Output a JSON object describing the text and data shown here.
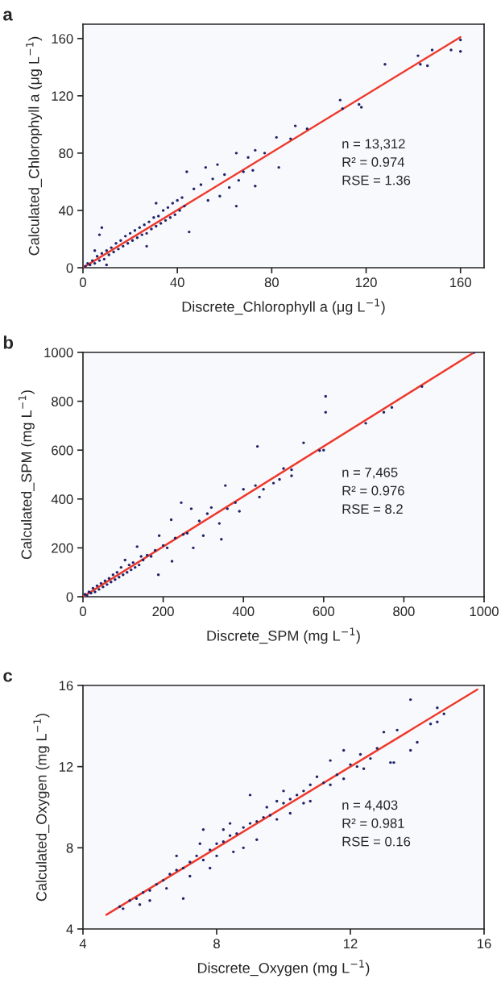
{
  "chart_data": [
    {
      "type": "scatter",
      "title": "a",
      "xlabel": "Discrete_Chlorophyll a (μg L$^{−1}$)",
      "ylabel": "Calculated_Chlorophyll a (μg L$^{−1}$)",
      "xlim": [
        0,
        170
      ],
      "ylim": [
        0,
        170
      ],
      "xticks": [
        0,
        40,
        80,
        120,
        160
      ],
      "yticks": [
        0,
        40,
        80,
        120,
        160
      ],
      "grid": false,
      "annotations": [
        "n = 13,312",
        "R² = 0.974",
        "RSE = 1.36"
      ],
      "series": [
        {
          "marker": "circle",
          "color": "#1f2468",
          "x": [
            1,
            2,
            3,
            4,
            5,
            6,
            7,
            8,
            9,
            10,
            11,
            12,
            13,
            14,
            15,
            16,
            17,
            18,
            19,
            20,
            21,
            22,
            23,
            24,
            25,
            26,
            27,
            28,
            29,
            30,
            31,
            32,
            33,
            34,
            35,
            36,
            37,
            38,
            39,
            40,
            41,
            42,
            43,
            44,
            45,
            5,
            8,
            10,
            7,
            27,
            31,
            47,
            50,
            52,
            53,
            55,
            57,
            58,
            60,
            62,
            65,
            65,
            66,
            68,
            70,
            72,
            73,
            73,
            77,
            82,
            83,
            88,
            90,
            95,
            109,
            110,
            117,
            118,
            128,
            142,
            143,
            146,
            148,
            156,
            160,
            160
          ],
          "values": [
            1,
            3,
            2,
            5,
            3,
            8,
            5,
            10,
            6,
            12,
            9,
            14,
            11,
            17,
            13,
            19,
            15,
            22,
            17,
            24,
            19,
            26,
            21,
            28,
            23,
            30,
            24,
            32,
            27,
            35,
            29,
            36,
            31,
            40,
            33,
            42,
            35,
            45,
            37,
            47,
            40,
            49,
            43,
            67,
            25,
            12,
            28,
            2,
            23,
            15,
            45,
            55,
            58,
            70,
            47,
            62,
            72,
            50,
            65,
            56,
            80,
            43,
            61,
            67,
            77,
            68,
            82,
            57,
            80,
            91,
            70,
            90,
            99,
            97,
            117,
            111,
            114,
            112,
            142,
            148,
            142,
            141,
            152,
            152,
            159,
            151
          ]
        },
        {
          "type": "line",
          "marker": "none",
          "line_style": "solid",
          "color": "#ee3a2c",
          "x": [
            0,
            160
          ],
          "values": [
            0,
            161
          ]
        }
      ]
    },
    {
      "type": "scatter",
      "title": "b",
      "xlabel": "Discrete_SPM (mg L$^{−1}$)",
      "ylabel": "Calculated_SPM (mg L$^{−1}$)",
      "xlim": [
        0,
        1000
      ],
      "ylim": [
        0,
        1000
      ],
      "xticks": [
        0,
        200,
        400,
        600,
        800,
        1000
      ],
      "yticks": [
        0,
        200,
        400,
        600,
        800,
        1000
      ],
      "grid": false,
      "annotations": [
        "n = 7,465",
        "R² = 0.976",
        "RSE = 8.2"
      ],
      "series": [
        {
          "marker": "circle",
          "color": "#1f2468",
          "x": [
            5,
            10,
            15,
            20,
            25,
            30,
            35,
            40,
            45,
            50,
            55,
            60,
            65,
            70,
            75,
            80,
            85,
            90,
            95,
            100,
            105,
            110,
            115,
            120,
            125,
            130,
            135,
            140,
            145,
            150,
            160,
            170,
            180,
            188,
            190,
            200,
            210,
            220,
            222,
            230,
            245,
            250,
            260,
            270,
            275,
            290,
            300,
            310,
            320,
            340,
            345,
            355,
            360,
            380,
            390,
            400,
            430,
            435,
            440,
            450,
            475,
            490,
            500,
            520,
            520,
            550,
            590,
            600,
            605,
            605,
            705,
            750,
            770,
            845,
            975
          ],
          "values": [
            10,
            5,
            20,
            15,
            35,
            20,
            45,
            30,
            55,
            40,
            65,
            50,
            75,
            60,
            90,
            70,
            100,
            80,
            120,
            90,
            150,
            100,
            130,
            110,
            140,
            120,
            205,
            130,
            165,
            150,
            170,
            165,
            190,
            90,
            250,
            210,
            200,
            315,
            145,
            240,
            385,
            255,
            260,
            360,
            200,
            310,
            250,
            340,
            365,
            300,
            235,
            455,
            360,
            385,
            350,
            440,
            455,
            615,
            408,
            440,
            465,
            480,
            525,
            520,
            495,
            630,
            598,
            600,
            820,
            755,
            710,
            755,
            775,
            860,
            1000
          ]
        },
        {
          "type": "line",
          "marker": "none",
          "line_style": "solid",
          "color": "#ee3a2c",
          "x": [
            0,
            975
          ],
          "values": [
            0,
            1000
          ]
        }
      ]
    },
    {
      "type": "scatter",
      "title": "c",
      "xlabel": "Discrete_Oxygen (mg L$^{−1}$)",
      "ylabel": "Calculated_Oxygen (mg L$^{−1}$)",
      "xlim": [
        4,
        16
      ],
      "ylim": [
        4,
        16
      ],
      "xticks": [
        4,
        8,
        12,
        16
      ],
      "yticks": [
        4,
        8,
        12,
        16
      ],
      "grid": false,
      "annotations": [
        "n = 4,403",
        "R² = 0.981",
        "RSE = 0.16"
      ],
      "series": [
        {
          "marker": "circle",
          "color": "#1f2468",
          "x": [
            5.1,
            5.2,
            5.4,
            5.6,
            5.7,
            5.8,
            6.0,
            6.0,
            6.2,
            6.4,
            6.5,
            6.6,
            6.8,
            6.8,
            7.0,
            7.0,
            7.2,
            7.2,
            7.4,
            7.5,
            7.6,
            7.6,
            7.8,
            7.8,
            8.0,
            8.0,
            8.2,
            8.2,
            8.4,
            8.4,
            8.5,
            8.6,
            8.8,
            8.8,
            9.0,
            9.0,
            9.2,
            9.2,
            9.4,
            9.5,
            9.6,
            9.8,
            9.8,
            10.0,
            10.0,
            10.2,
            10.2,
            10.4,
            10.6,
            10.6,
            10.8,
            10.8,
            11.0,
            11.2,
            11.4,
            11.4,
            11.6,
            11.8,
            11.8,
            12.0,
            12.2,
            12.3,
            12.4,
            12.6,
            12.8,
            13.0,
            13.2,
            13.3,
            13.4,
            13.8,
            13.8,
            14.0,
            14.4,
            14.6,
            14.6,
            14.8
          ],
          "values": [
            5.1,
            5.0,
            5.4,
            5.5,
            5.2,
            5.8,
            5.9,
            5.4,
            6.2,
            6.4,
            6.0,
            6.7,
            6.9,
            7.6,
            7.0,
            5.5,
            7.3,
            6.6,
            7.6,
            8.2,
            7.4,
            8.9,
            7.9,
            7.0,
            8.2,
            7.6,
            8.9,
            8.3,
            8.6,
            9.2,
            7.8,
            8.7,
            9.0,
            8.0,
            10.6,
            9.2,
            9.3,
            8.4,
            9.5,
            10.0,
            9.6,
            10.3,
            9.4,
            10.2,
            10.8,
            10.4,
            9.7,
            10.6,
            10.8,
            10.2,
            11.1,
            10.3,
            11.5,
            11.2,
            12.3,
            11.1,
            11.6,
            12.8,
            11.4,
            12.1,
            12.0,
            12.6,
            11.9,
            12.4,
            12.9,
            13.7,
            12.2,
            12.2,
            13.8,
            15.3,
            12.8,
            13.2,
            14.1,
            14.9,
            14.2,
            14.6
          ]
        },
        {
          "type": "line",
          "marker": "none",
          "line_style": "solid",
          "color": "#ee3a2c",
          "x": [
            4.7,
            15.8
          ],
          "values": [
            4.7,
            15.8
          ]
        }
      ]
    }
  ]
}
